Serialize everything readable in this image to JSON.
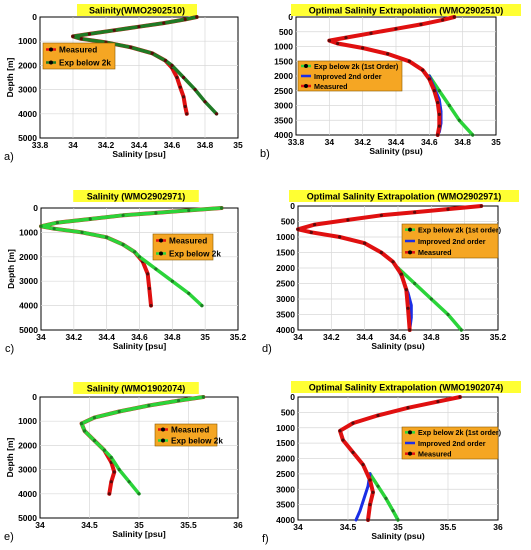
{
  "colors": {
    "green": "#2bd43a",
    "dark_green": "#1f7a25",
    "red": "#e01010",
    "dark_red": "#7a1010",
    "blue": "#1a2ee6",
    "title_bg": "#ffff33",
    "legend_bg": "#f5a623"
  },
  "chart_data": [
    {
      "panel": "a)",
      "type": "line",
      "title": "Salinity(WMO2902510)",
      "xlabel": "Salinity [psu]",
      "ylabel": "Depth [m]",
      "xlim": [
        33.8,
        35
      ],
      "ylim": [
        5000,
        0
      ],
      "xticks": [
        "33.8",
        "34",
        "34.2",
        "34.4",
        "34.6",
        "34.8",
        "35"
      ],
      "yticks": [
        "0",
        "1000",
        "2000",
        "3000",
        "4000",
        "5000"
      ],
      "legend": [
        "Measured",
        "Exp below 2k"
      ],
      "legend_position": "upper-left",
      "series": [
        {
          "name": "Measured",
          "color": "red",
          "x": [
            34.75,
            34.68,
            34.55,
            34.4,
            34.25,
            34.1,
            34.0,
            34.05,
            34.2,
            34.35,
            34.48,
            34.56,
            34.6,
            34.63,
            34.65,
            34.67,
            34.68,
            34.69
          ],
          "y": [
            0,
            100,
            250,
            400,
            550,
            700,
            800,
            900,
            1050,
            1250,
            1500,
            1800,
            2100,
            2500,
            2900,
            3300,
            3700,
            4000
          ]
        },
        {
          "name": "Exp below 2k",
          "color": "dark_green",
          "x": [
            34.75,
            34.68,
            34.55,
            34.4,
            34.25,
            34.1,
            34.0,
            34.05,
            34.2,
            34.35,
            34.48,
            34.56,
            34.6,
            34.67,
            34.74,
            34.8,
            34.87
          ],
          "y": [
            0,
            100,
            250,
            400,
            550,
            700,
            800,
            900,
            1050,
            1250,
            1500,
            1800,
            2000,
            2500,
            3000,
            3500,
            4000
          ]
        }
      ]
    },
    {
      "panel": "b)",
      "type": "line",
      "title": "Optimal Salinity Extrapolation (WMO2902510)",
      "xlabel": "Salinity (psu)",
      "ylabel": "",
      "xlim": [
        33.8,
        35
      ],
      "ylim": [
        4000,
        0
      ],
      "xticks": [
        "33.8",
        "34",
        "34.2",
        "34.4",
        "34.6",
        "34.8",
        "35"
      ],
      "yticks": [
        "0",
        "500",
        "1000",
        "1500",
        "2000",
        "2500",
        "3000",
        "3500",
        "4000"
      ],
      "legend": [
        "Exp below 2k (1st Order)",
        "Improved 2nd order",
        "Measured"
      ],
      "legend_position": "middle-left",
      "series": [
        {
          "name": "Exp below 2k (1st Order)",
          "color": "green",
          "x": [
            34.6,
            34.66,
            34.72,
            34.78,
            34.86
          ],
          "y": [
            2000,
            2500,
            3000,
            3500,
            4000
          ]
        },
        {
          "name": "Improved 2nd order",
          "color": "blue",
          "x": [
            34.6,
            34.63,
            34.66,
            34.67,
            34.67,
            34.66
          ],
          "y": [
            2000,
            2400,
            2800,
            3200,
            3600,
            3900
          ]
        },
        {
          "name": "Measured",
          "color": "red",
          "x": [
            34.75,
            34.68,
            34.55,
            34.4,
            34.25,
            34.1,
            34.0,
            34.05,
            34.2,
            34.35,
            34.48,
            34.56,
            34.6,
            34.63,
            34.65,
            34.66,
            34.66,
            34.65
          ],
          "y": [
            0,
            100,
            250,
            400,
            550,
            700,
            800,
            900,
            1050,
            1250,
            1500,
            1800,
            2100,
            2500,
            2900,
            3300,
            3700,
            4000
          ]
        }
      ]
    },
    {
      "panel": "c)",
      "type": "line",
      "title": "Salinity (WMO2902971)",
      "xlabel": "Salinity [psu]",
      "ylabel": "Depth [m]",
      "xlim": [
        34,
        35.2
      ],
      "ylim": [
        5000,
        0
      ],
      "xticks": [
        "34",
        "34.2",
        "34.4",
        "34.6",
        "34.8",
        "35",
        "35.2"
      ],
      "yticks": [
        "0",
        "1000",
        "2000",
        "3000",
        "4000",
        "5000"
      ],
      "legend": [
        "Measured",
        "Exp below 2k"
      ],
      "legend_position": "right",
      "series": [
        {
          "name": "Measured",
          "color": "red",
          "x": [
            35.1,
            34.9,
            34.7,
            34.5,
            34.3,
            34.1,
            34.0,
            34.08,
            34.25,
            34.4,
            34.5,
            34.57,
            34.62,
            34.65,
            34.66,
            34.67
          ],
          "y": [
            0,
            100,
            200,
            300,
            450,
            600,
            750,
            850,
            1000,
            1200,
            1500,
            1800,
            2200,
            2700,
            3300,
            4000
          ]
        },
        {
          "name": "Exp below 2k",
          "color": "green",
          "x": [
            35.1,
            34.9,
            34.7,
            34.5,
            34.3,
            34.1,
            34.0,
            34.08,
            34.25,
            34.4,
            34.5,
            34.57,
            34.6,
            34.7,
            34.8,
            34.9,
            34.98
          ],
          "y": [
            0,
            100,
            200,
            300,
            450,
            600,
            750,
            850,
            1000,
            1200,
            1500,
            1800,
            2000,
            2500,
            3000,
            3500,
            4000
          ]
        }
      ]
    },
    {
      "panel": "d)",
      "type": "line",
      "title": "Optimal Salinity Extrapolation (WMO2902971)",
      "xlabel": "Salinity (psu)",
      "ylabel": "",
      "xlim": [
        34,
        35.2
      ],
      "ylim": [
        4000,
        0
      ],
      "xticks": [
        "34",
        "34.2",
        "34.4",
        "34.6",
        "34.8",
        "35",
        "35.2"
      ],
      "yticks": [
        "0",
        "500",
        "1000",
        "1500",
        "2000",
        "2500",
        "3000",
        "3500",
        "4000"
      ],
      "legend": [
        "Exp below 2k (1st order)",
        "Improved 2nd order",
        "Measured"
      ],
      "legend_position": "upper-right",
      "series": [
        {
          "name": "Exp below 2k (1st order)",
          "color": "green",
          "x": [
            34.6,
            34.7,
            34.8,
            34.9,
            34.98
          ],
          "y": [
            2000,
            2500,
            3000,
            3500,
            4000
          ]
        },
        {
          "name": "Improved 2nd order",
          "color": "blue",
          "x": [
            34.6,
            34.63,
            34.66,
            34.68,
            34.68,
            34.67
          ],
          "y": [
            2000,
            2400,
            2800,
            3200,
            3600,
            4000
          ]
        },
        {
          "name": "Measured",
          "color": "red",
          "x": [
            35.1,
            34.9,
            34.7,
            34.5,
            34.3,
            34.1,
            34.0,
            34.08,
            34.25,
            34.4,
            34.5,
            34.57,
            34.62,
            34.65,
            34.66,
            34.67
          ],
          "y": [
            0,
            100,
            200,
            300,
            450,
            600,
            750,
            850,
            1000,
            1200,
            1500,
            1800,
            2200,
            2700,
            3300,
            4000
          ]
        }
      ]
    },
    {
      "panel": "e)",
      "type": "line",
      "title": "Salinity (WMO1902074)",
      "xlabel": "Salinity [psu]",
      "ylabel": "Depth [m]",
      "xlim": [
        34,
        36
      ],
      "ylim": [
        5000,
        0
      ],
      "xticks": [
        "34",
        "34.5",
        "35",
        "35.5",
        "36"
      ],
      "yticks": [
        "0",
        "1000",
        "2000",
        "3000",
        "4000",
        "5000"
      ],
      "legend": [
        "Measured",
        "Exp below 2k"
      ],
      "legend_position": "right",
      "series": [
        {
          "name": "Measured",
          "color": "red",
          "x": [
            35.65,
            35.4,
            35.1,
            34.8,
            34.55,
            34.42,
            34.45,
            34.55,
            34.65,
            34.72,
            34.75,
            34.72,
            34.7
          ],
          "y": [
            0,
            150,
            350,
            600,
            850,
            1100,
            1400,
            1800,
            2200,
            2700,
            3100,
            3500,
            4000
          ]
        },
        {
          "name": "Exp below 2k",
          "color": "green",
          "x": [
            35.65,
            35.4,
            35.1,
            34.8,
            34.55,
            34.42,
            34.45,
            34.55,
            34.65,
            34.72,
            34.8,
            34.9,
            35.0
          ],
          "y": [
            0,
            150,
            350,
            600,
            850,
            1100,
            1400,
            1800,
            2200,
            2500,
            3000,
            3500,
            4000
          ]
        }
      ]
    },
    {
      "panel": "f)",
      "type": "line",
      "title": "Optimal Salinity Extrapolation (WMO1902074)",
      "xlabel": "Salinity (psu)",
      "ylabel": "",
      "xlim": [
        34,
        36
      ],
      "ylim": [
        4000,
        0
      ],
      "xticks": [
        "34",
        "34.5",
        "35",
        "35.5",
        "36"
      ],
      "yticks": [
        "0",
        "500",
        "1000",
        "1500",
        "2000",
        "2500",
        "3000",
        "3500",
        "4000"
      ],
      "legend": [
        "Exp below 2k (1st order)",
        "Improved 2nd order",
        "Measured"
      ],
      "legend_position": "upper-right",
      "series": [
        {
          "name": "Exp below 2k (1st order)",
          "color": "green",
          "x": [
            34.72,
            34.8,
            34.88,
            34.95,
            35.0
          ],
          "y": [
            2500,
            2900,
            3300,
            3700,
            4000
          ]
        },
        {
          "name": "Improved 2nd order",
          "color": "blue",
          "x": [
            34.72,
            34.7,
            34.66,
            34.62,
            34.58
          ],
          "y": [
            2500,
            2900,
            3300,
            3700,
            4000
          ]
        },
        {
          "name": "Measured",
          "color": "red",
          "x": [
            35.62,
            35.4,
            35.1,
            34.8,
            34.55,
            34.42,
            34.45,
            34.55,
            34.65,
            34.72,
            34.75,
            34.72,
            34.7
          ],
          "y": [
            0,
            150,
            350,
            600,
            850,
            1100,
            1400,
            1800,
            2200,
            2700,
            3100,
            3500,
            4000
          ]
        }
      ]
    }
  ]
}
